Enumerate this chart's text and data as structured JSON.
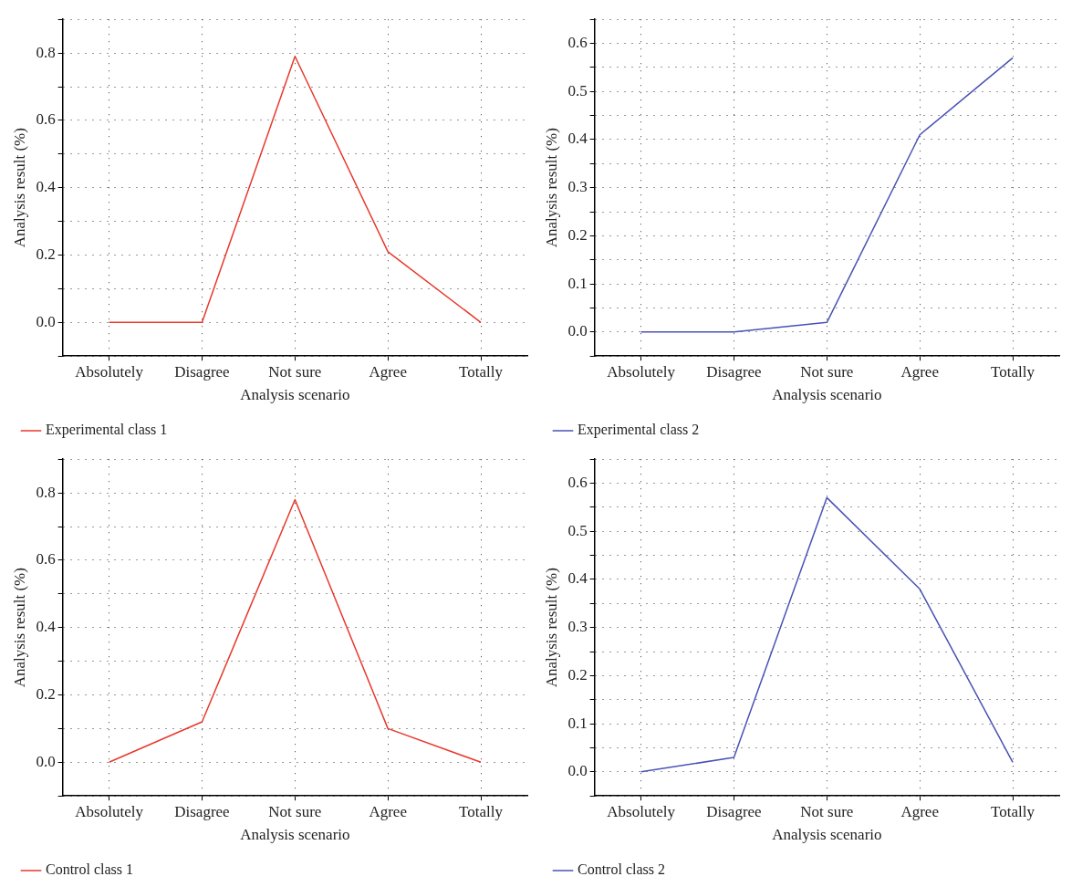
{
  "chart_data": [
    {
      "type": "line",
      "xlabel": "Analysis scenario",
      "ylabel": "Analysis result (%)",
      "categories": [
        "Absolutely",
        "Disagree",
        "Not sure",
        "Agree",
        "Totally"
      ],
      "series": [
        {
          "name": "Experimental class 1",
          "color": "#e8392b",
          "values": [
            0,
            0,
            0.79,
            0.21,
            0
          ]
        }
      ],
      "ylim": [
        -0.1,
        0.9
      ],
      "yticks": [
        {
          "value": -0.1,
          "label": null
        },
        {
          "value": 0,
          "label": "0.0"
        },
        {
          "value": 0.1,
          "label": null
        },
        0.2,
        {
          "value": 0.3,
          "label": null
        },
        0.4,
        {
          "value": 0.5,
          "label": null
        },
        0.6,
        {
          "value": 0.7,
          "label": null
        },
        0.8,
        {
          "value": 0.9,
          "label": null
        }
      ],
      "grid": true,
      "legend": "bottom left",
      "marker": "none",
      "line_style": "solid"
    },
    {
      "type": "line",
      "xlabel": "Analysis scenario",
      "ylabel": "Analysis result (%)",
      "categories": [
        "Absolutely",
        "Disagree",
        "Not sure",
        "Agree",
        "Totally"
      ],
      "series": [
        {
          "name": "Experimental class 2",
          "color": "#4a52b5",
          "values": [
            0,
            0,
            0.02,
            0.41,
            0.57
          ]
        }
      ],
      "ylim": [
        -0.05,
        0.65
      ],
      "yticks": [
        {
          "value": -0.05,
          "label": null
        },
        {
          "value": 0,
          "label": "0.0"
        },
        {
          "value": 0.05,
          "label": null
        },
        0.1,
        {
          "value": 0.15,
          "label": null
        },
        0.2,
        {
          "value": 0.25,
          "label": null
        },
        0.3,
        {
          "value": 0.35,
          "label": null
        },
        0.4,
        {
          "value": 0.45,
          "label": null
        },
        0.5,
        {
          "value": 0.55,
          "label": null
        },
        0.6,
        {
          "value": 0.65,
          "label": null
        }
      ],
      "grid": true,
      "legend": "bottom left",
      "marker": "none",
      "line_style": "solid"
    },
    {
      "type": "line",
      "xlabel": "Analysis scenario",
      "ylabel": "Analysis result (%)",
      "categories": [
        "Absolutely",
        "Disagree",
        "Not sure",
        "Agree",
        "Totally"
      ],
      "series": [
        {
          "name": "Control class 1",
          "color": "#e8392b",
          "values": [
            0,
            0.12,
            0.78,
            0.1,
            0
          ]
        }
      ],
      "ylim": [
        -0.1,
        0.9
      ],
      "yticks": [
        {
          "value": -0.1,
          "label": null
        },
        {
          "value": 0,
          "label": "0.0"
        },
        {
          "value": 0.1,
          "label": null
        },
        0.2,
        {
          "value": 0.3,
          "label": null
        },
        0.4,
        {
          "value": 0.5,
          "label": null
        },
        0.6,
        {
          "value": 0.7,
          "label": null
        },
        0.8,
        {
          "value": 0.9,
          "label": null
        }
      ],
      "grid": true,
      "legend": "bottom left",
      "marker": "none",
      "line_style": "solid"
    },
    {
      "type": "line",
      "xlabel": "Analysis scenario",
      "ylabel": "Analysis result (%)",
      "categories": [
        "Absolutely",
        "Disagree",
        "Not sure",
        "Agree",
        "Totally"
      ],
      "series": [
        {
          "name": "Control class 2",
          "color": "#4a52b5",
          "values": [
            0,
            0.03,
            0.57,
            0.38,
            0.02
          ]
        }
      ],
      "ylim": [
        -0.05,
        0.65
      ],
      "yticks": [
        {
          "value": -0.05,
          "label": null
        },
        {
          "value": 0,
          "label": "0.0"
        },
        {
          "value": 0.05,
          "label": null
        },
        0.1,
        {
          "value": 0.15,
          "label": null
        },
        0.2,
        {
          "value": 0.25,
          "label": null
        },
        0.3,
        {
          "value": 0.35,
          "label": null
        },
        0.4,
        {
          "value": 0.45,
          "label": null
        },
        0.5,
        {
          "value": 0.55,
          "label": null
        },
        0.6,
        {
          "value": 0.65,
          "label": null
        }
      ],
      "grid": true,
      "legend": "bottom left",
      "marker": "none",
      "line_style": "solid"
    }
  ]
}
